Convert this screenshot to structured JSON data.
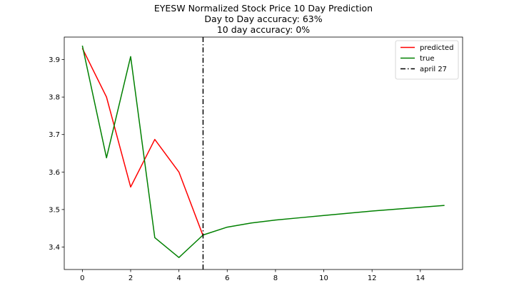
{
  "chart_data": {
    "type": "line",
    "title_lines": [
      "EYESW Normalized Stock Price 10 Day Prediction",
      "Day to Day accuracy: 63%",
      "10 day accuracy: 0%"
    ],
    "xlabel": "",
    "ylabel": "",
    "xlim": [
      -0.75,
      15.75
    ],
    "ylim": [
      3.34,
      3.96
    ],
    "x_ticks": [
      0,
      2,
      4,
      6,
      8,
      10,
      12,
      14
    ],
    "x_tick_labels": [
      "0",
      "2",
      "4",
      "6",
      "8",
      "10",
      "12",
      "14"
    ],
    "y_ticks": [
      3.4,
      3.5,
      3.6,
      3.7,
      3.8,
      3.9
    ],
    "y_tick_labels": [
      "3.4",
      "3.5",
      "3.6",
      "3.7",
      "3.8",
      "3.9"
    ],
    "grid": false,
    "legend_position": "top-right",
    "series": [
      {
        "name": "predicted",
        "color": "#ff0000",
        "style": "solid",
        "x": [
          0,
          1,
          2,
          3,
          4,
          5
        ],
        "y": [
          3.93,
          3.8,
          3.56,
          3.687,
          3.6,
          3.43
        ]
      },
      {
        "name": "true",
        "color": "#008000",
        "style": "solid",
        "x": [
          0,
          1,
          2,
          3,
          4,
          5,
          6,
          7,
          8,
          9,
          10,
          11,
          12,
          13,
          14,
          15
        ],
        "y": [
          3.937,
          3.638,
          3.908,
          3.425,
          3.372,
          3.432,
          3.453,
          3.464,
          3.472,
          3.478,
          3.484,
          3.49,
          3.496,
          3.501,
          3.506,
          3.511
        ]
      }
    ],
    "vlines": [
      {
        "name": "april 27",
        "color": "#000000",
        "style": "dashdot",
        "x": 5
      }
    ]
  }
}
